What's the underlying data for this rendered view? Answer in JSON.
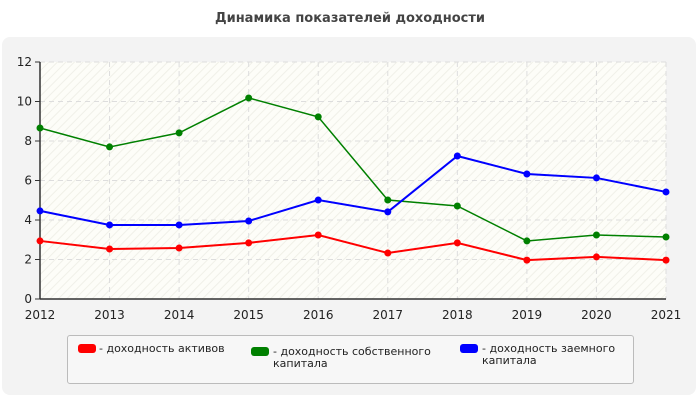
{
  "chart_data": {
    "type": "line",
    "title": "Динамика показателей доходности",
    "categories": [
      "2012",
      "2013",
      "2014",
      "2015",
      "2016",
      "2017",
      "2018",
      "2019",
      "2020",
      "2021"
    ],
    "ylim": [
      0,
      12
    ],
    "yticks": [
      0,
      2,
      4,
      6,
      8,
      10,
      12
    ],
    "grid": true,
    "legend_position": "bottom",
    "series": [
      {
        "name": "- доходность активов",
        "color": "#ff0000",
        "values": [
          2.94,
          2.53,
          2.58,
          2.84,
          3.24,
          2.33,
          2.84,
          1.97,
          2.13,
          1.97
        ]
      },
      {
        "name": "- доходность собственного капитала",
        "color": "#008000",
        "values": [
          8.66,
          7.7,
          8.41,
          10.18,
          9.22,
          5.01,
          4.71,
          2.94,
          3.24,
          3.14
        ]
      },
      {
        "name": "- доходность заемного капитала",
        "color": "#0000ff",
        "values": [
          4.46,
          3.75,
          3.75,
          3.95,
          5.01,
          4.41,
          7.24,
          6.33,
          6.13,
          5.42
        ]
      }
    ]
  }
}
